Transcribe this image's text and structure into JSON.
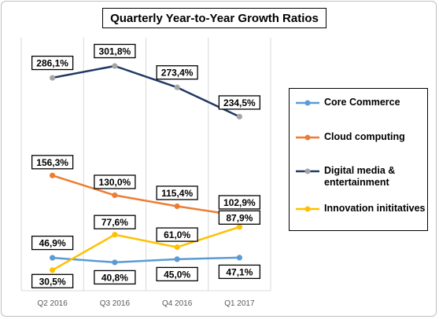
{
  "chart_data": {
    "type": "line",
    "title": "Quarterly Year-to-Year Growth Ratios",
    "categories": [
      "Q2 2016",
      "Q3 2016",
      "Q4 2016",
      "Q1 2017"
    ],
    "ylim": [
      0,
      330
    ],
    "grid": "vertical",
    "legend_position": "right",
    "series": [
      {
        "name": "Core Commerce",
        "color": "#5b9bd5",
        "values": [
          46.9,
          40.8,
          45.0,
          47.1
        ],
        "labels": [
          "46,9%",
          "40,8%",
          "45,0%",
          "47,1%"
        ]
      },
      {
        "name": "Cloud computing",
        "color": "#ed7d31",
        "values": [
          156.3,
          130.0,
          115.4,
          102.9
        ],
        "labels": [
          "156,3%",
          "130,0%",
          "115,4%",
          "102,9%"
        ]
      },
      {
        "name": "Digital media & entertainment",
        "color": "#203864",
        "marker_color": "#a5a5a5",
        "values": [
          286.1,
          301.8,
          273.4,
          234.5
        ],
        "labels": [
          "286,1%",
          "301,8%",
          "273,4%",
          "234,5%"
        ]
      },
      {
        "name": "Innovation inititatives",
        "color": "#ffc000",
        "values": [
          30.5,
          77.6,
          61.0,
          87.9
        ],
        "labels": [
          "30,5%",
          "77,6%",
          "61,0%",
          "87,9%"
        ]
      }
    ]
  }
}
